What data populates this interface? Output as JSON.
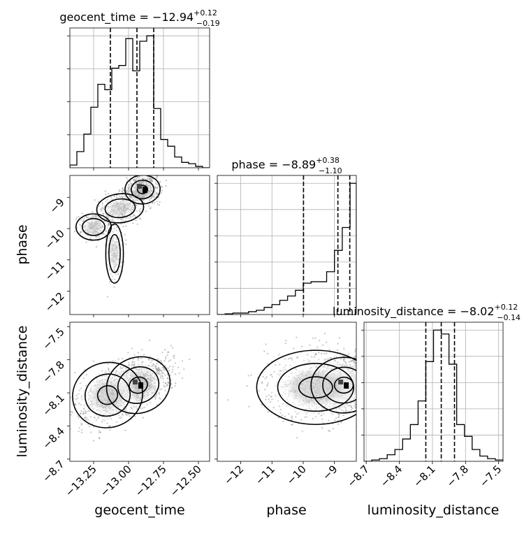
{
  "chart_data": {
    "type": "corner",
    "parameters": [
      "geocent_time",
      "phase",
      "luminosity_distance"
    ],
    "titles": [
      {
        "base": "geocent_time = −12.94",
        "plus": "+0.12",
        "minus": "−0.19"
      },
      {
        "base": "phase = −8.89",
        "plus": "+0.38",
        "minus": "−1.10"
      },
      {
        "base": "luminosity_distance = −8.02",
        "plus": "+0.12",
        "minus": "−0.14"
      }
    ],
    "axes": {
      "geocent_time": {
        "range": [
          -13.42,
          -12.42
        ],
        "ticks": [
          -13.25,
          -13.0,
          -12.75,
          -12.5
        ],
        "tick_labels": [
          "−13.25",
          "−13.00",
          "−12.75",
          "−12.50"
        ]
      },
      "phase": {
        "range": [
          -12.75,
          -8.3
        ],
        "ticks": [
          -12,
          -11,
          -10,
          -9
        ],
        "tick_labels": [
          "−12",
          "−11",
          "−10",
          "−9"
        ]
      },
      "luminosity_distance": {
        "range": [
          -8.72,
          -7.46
        ],
        "ticks": [
          -8.7,
          -8.4,
          -8.1,
          -7.8,
          -7.5
        ],
        "tick_labels": [
          "−8.7",
          "−8.4",
          "−8.1",
          "−7.8",
          "−7.5"
        ]
      }
    },
    "quantiles": {
      "geocent_time": [
        -13.13,
        -12.94,
        -12.82
      ],
      "phase": [
        -9.99,
        -8.89,
        -8.51
      ],
      "luminosity_distance": [
        -8.16,
        -8.02,
        -7.9
      ]
    },
    "histograms": {
      "geocent_time": {
        "edges": [
          -13.42,
          -13.37,
          -13.32,
          -13.27,
          -13.22,
          -13.17,
          -13.12,
          -13.07,
          -13.02,
          -12.97,
          -12.92,
          -12.87,
          -12.82,
          -12.77,
          -12.72,
          -12.67,
          -12.62,
          -12.57,
          -12.52,
          -12.47,
          -12.42
        ],
        "counts": [
          0.02,
          0.12,
          0.25,
          0.45,
          0.62,
          0.58,
          0.74,
          0.76,
          0.96,
          0.72,
          0.94,
          0.98,
          0.44,
          0.21,
          0.16,
          0.08,
          0.04,
          0.03,
          0.01,
          0.0
        ]
      },
      "phase": {
        "edges": [
          -12.75,
          -12.5,
          -12.25,
          -12.0,
          -11.75,
          -11.5,
          -11.25,
          -11.0,
          -10.75,
          -10.5,
          -10.25,
          -10.0,
          -9.75,
          -9.5,
          -9.25,
          -9.0,
          -8.75,
          -8.5,
          -8.3
        ],
        "counts": [
          0.0,
          0.005,
          0.01,
          0.01,
          0.02,
          0.03,
          0.05,
          0.07,
          0.1,
          0.13,
          0.17,
          0.22,
          0.23,
          0.23,
          0.3,
          0.45,
          0.61,
          0.92
        ]
      },
      "luminosity_distance": {
        "edges": [
          -8.72,
          -8.65,
          -8.58,
          -8.51,
          -8.44,
          -8.37,
          -8.3,
          -8.23,
          -8.16,
          -8.09,
          -8.02,
          -7.95,
          -7.88,
          -7.81,
          -7.74,
          -7.67,
          -7.6,
          -7.53,
          -7.46
        ],
        "counts": [
          0.0,
          0.01,
          0.02,
          0.05,
          0.09,
          0.17,
          0.28,
          0.46,
          0.76,
          1.0,
          0.97,
          0.74,
          0.28,
          0.19,
          0.09,
          0.04,
          0.02,
          0.01
        ]
      }
    },
    "grid": true,
    "contour_levels": 3
  }
}
